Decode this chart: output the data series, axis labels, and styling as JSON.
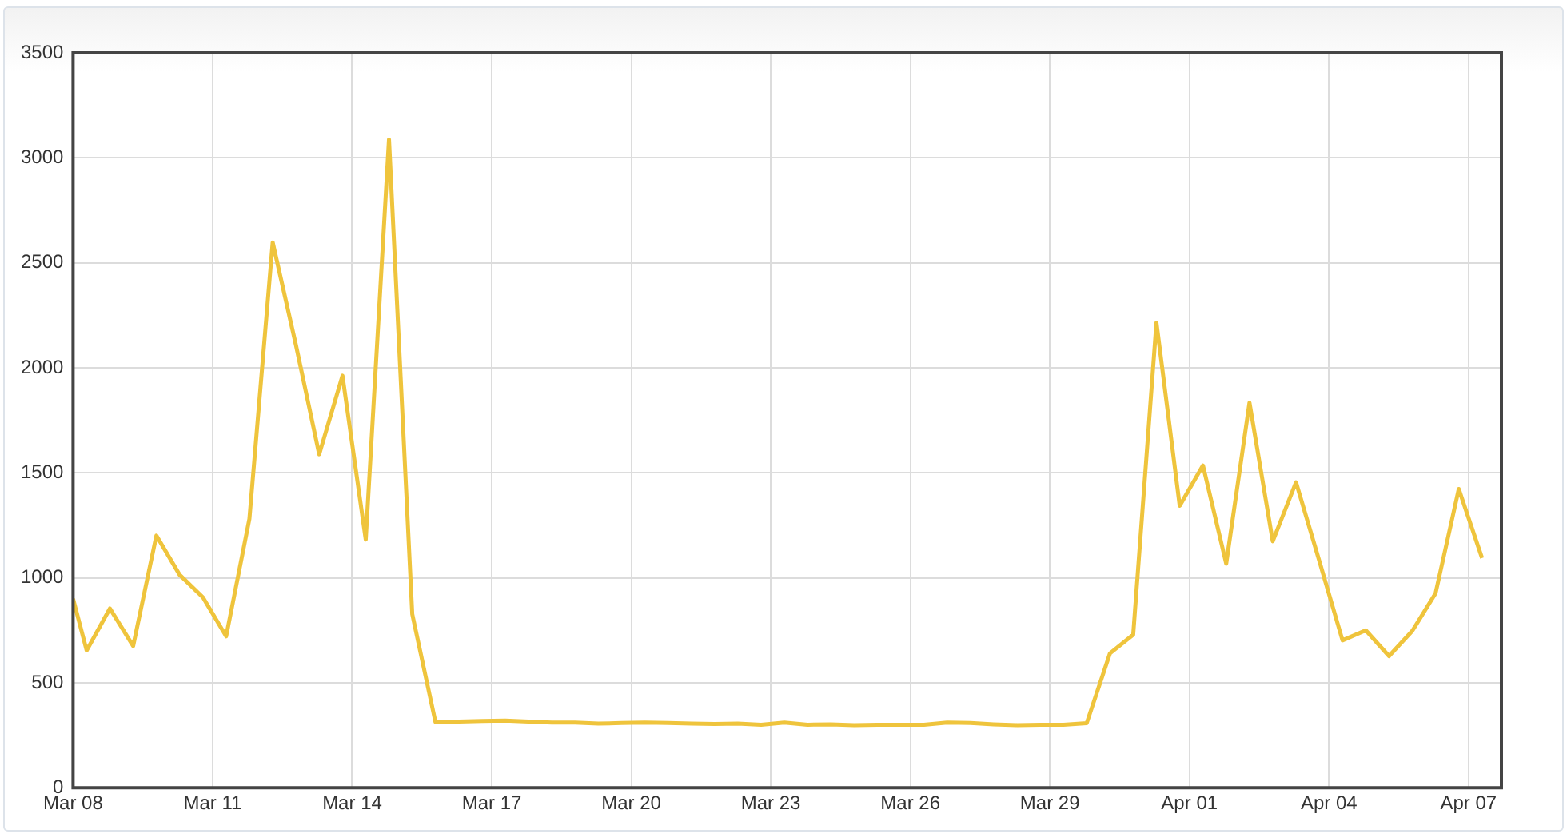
{
  "chart_data": {
    "type": "line",
    "x": [
      "--03-08T00:00",
      "--03-08T07:00",
      "--03-08T19:00",
      "--03-09T07:00",
      "--03-09T19:00",
      "--03-10T07:00",
      "--03-10T19:00",
      "--03-11T07:00",
      "--03-11T19:00",
      "--03-12T07:00",
      "--03-12T19:00",
      "--03-13T07:00",
      "--03-13T19:00",
      "--03-14T07:00",
      "--03-14T19:00",
      "--03-15T07:00",
      "--03-15T19:00",
      "--03-16T07:00",
      "--03-16T19:00",
      "--03-17T07:00",
      "--03-17T19:00",
      "--03-18T07:00",
      "--03-18T19:00",
      "--03-19T07:00",
      "--03-19T19:00",
      "--03-20T07:00",
      "--03-20T19:00",
      "--03-21T07:00",
      "--03-21T19:00",
      "--03-22T07:00",
      "--03-22T19:00",
      "--03-23T07:00",
      "--03-23T19:00",
      "--03-24T07:00",
      "--03-24T19:00",
      "--03-25T07:00",
      "--03-25T19:00",
      "--03-26T07:00",
      "--03-26T19:00",
      "--03-27T07:00",
      "--03-27T19:00",
      "--03-28T07:00",
      "--03-28T19:00",
      "--03-29T07:00",
      "--03-29T19:00",
      "--03-30T07:00",
      "--03-30T19:00",
      "--03-31T07:00",
      "--03-31T19:00",
      "--04-01T07:00",
      "--04-01T19:00",
      "--04-02T07:00",
      "--04-02T19:00",
      "--04-03T07:00",
      "--04-03T19:00",
      "--04-04T07:00",
      "--04-04T19:00",
      "--04-05T07:00",
      "--04-05T19:00",
      "--04-06T07:00",
      "--04-06T19:00",
      "--04-07T07:00"
    ],
    "series": [
      {
        "color": "#efc43c",
        "values": [
          900,
          654,
          854,
          675,
          1201,
          1014,
          907,
          721,
          1281,
          2597,
          2108,
          1588,
          1962,
          1182,
          3088,
          827,
          312,
          315,
          318,
          320,
          315,
          310,
          310,
          305,
          308,
          310,
          308,
          305,
          303,
          305,
          300,
          310,
          300,
          302,
          298,
          300,
          300,
          300,
          310,
          308,
          302,
          298,
          300,
          300,
          307,
          640,
          729,
          2215,
          1343,
          1535,
          1067,
          1834,
          1174,
          1455,
          1081,
          702,
          750,
          627,
          747,
          926,
          1423,
          1094
        ]
      }
    ],
    "xlim": [
      "--03-08T00:00",
      "--04-07T17:00"
    ],
    "xticks": [
      {
        "value": "--03-08",
        "label": "Mar 08"
      },
      {
        "value": "--03-11",
        "label": "Mar 11"
      },
      {
        "value": "--03-14",
        "label": "Mar 14"
      },
      {
        "value": "--03-17",
        "label": "Mar 17"
      },
      {
        "value": "--03-20",
        "label": "Mar 20"
      },
      {
        "value": "--03-23",
        "label": "Mar 23"
      },
      {
        "value": "--03-26",
        "label": "Mar 26"
      },
      {
        "value": "--03-29",
        "label": "Mar 29"
      },
      {
        "value": "--04-01",
        "label": "Apr 01"
      },
      {
        "value": "--04-04",
        "label": "Apr 04"
      },
      {
        "value": "--04-07",
        "label": "Apr 07"
      }
    ],
    "ylim": [
      0,
      3500
    ],
    "yticks": [
      0,
      500,
      1000,
      1500,
      2000,
      2500,
      3000,
      3500
    ],
    "grid": true,
    "marker": "none",
    "line_style": "solid"
  }
}
